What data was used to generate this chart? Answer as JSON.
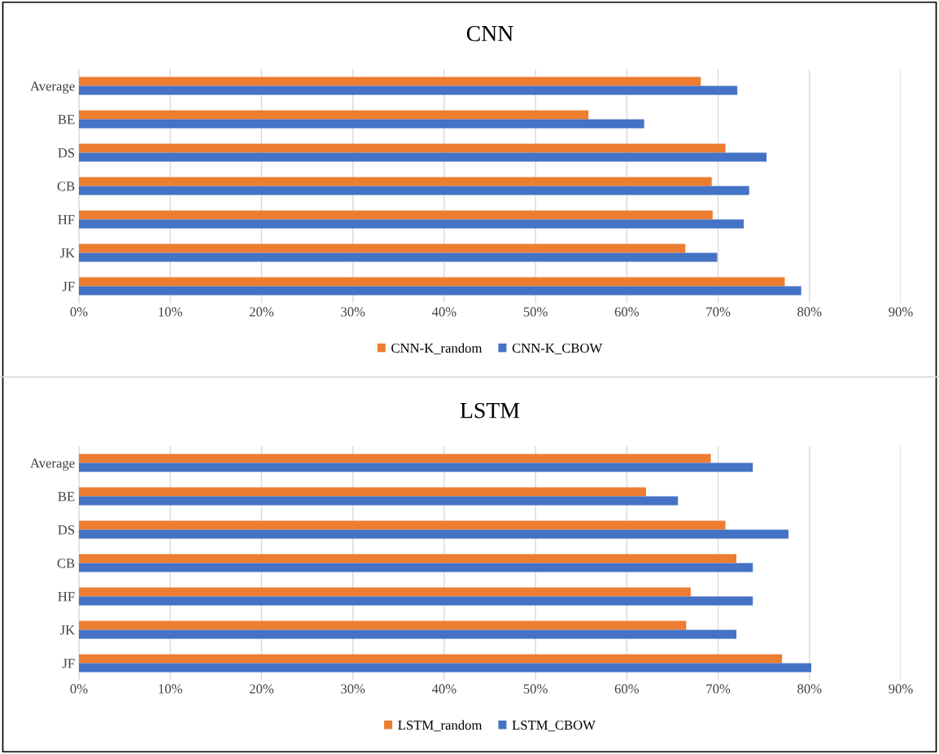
{
  "chart_data": [
    {
      "type": "bar",
      "orientation": "horizontal",
      "title": "CNN",
      "categories": [
        "Average",
        "BE",
        "DS",
        "CB",
        "HF",
        "JK",
        "JF"
      ],
      "series": [
        {
          "name": "CNN-K_random",
          "color": "#ed7d31",
          "values": [
            68.1,
            55.8,
            70.8,
            69.3,
            69.4,
            66.4,
            77.3
          ]
        },
        {
          "name": "CNN-K_CBOW",
          "color": "#4472c4",
          "values": [
            72.1,
            61.9,
            75.3,
            73.4,
            72.8,
            69.9,
            79.1
          ]
        }
      ],
      "xlim": [
        0,
        90
      ],
      "xticks": [
        {
          "value": 0,
          "label": "0%"
        },
        {
          "value": 10,
          "label": "10%"
        },
        {
          "value": 20,
          "label": "20%"
        },
        {
          "value": 30,
          "label": "30%"
        },
        {
          "value": 40,
          "label": "40%"
        },
        {
          "value": 50,
          "label": "50%"
        },
        {
          "value": 60,
          "label": "60%"
        },
        {
          "value": 70,
          "label": "70%"
        },
        {
          "value": 80,
          "label": "80%"
        },
        {
          "value": 90,
          "label": "90%"
        }
      ],
      "grid": "x",
      "legend": "bottom"
    },
    {
      "type": "bar",
      "orientation": "horizontal",
      "title": "LSTM",
      "categories": [
        "Average",
        "BE",
        "DS",
        "CB",
        "HF",
        "JK",
        "JF"
      ],
      "series": [
        {
          "name": "LSTM_random",
          "color": "#ed7d31",
          "values": [
            69.2,
            62.1,
            70.8,
            72.0,
            67.0,
            66.5,
            77.0
          ]
        },
        {
          "name": "LSTM_CBOW",
          "color": "#4472c4",
          "values": [
            73.8,
            65.6,
            77.7,
            73.8,
            73.8,
            72.0,
            80.2
          ]
        }
      ],
      "xlim": [
        0,
        90
      ],
      "xticks": [
        {
          "value": 0,
          "label": "0%"
        },
        {
          "value": 10,
          "label": "10%"
        },
        {
          "value": 20,
          "label": "20%"
        },
        {
          "value": 30,
          "label": "30%"
        },
        {
          "value": 40,
          "label": "40%"
        },
        {
          "value": 50,
          "label": "50%"
        },
        {
          "value": 60,
          "label": "60%"
        },
        {
          "value": 70,
          "label": "70%"
        },
        {
          "value": 80,
          "label": "80%"
        },
        {
          "value": 90,
          "label": "90%"
        }
      ],
      "grid": "x",
      "legend": "bottom"
    }
  ]
}
